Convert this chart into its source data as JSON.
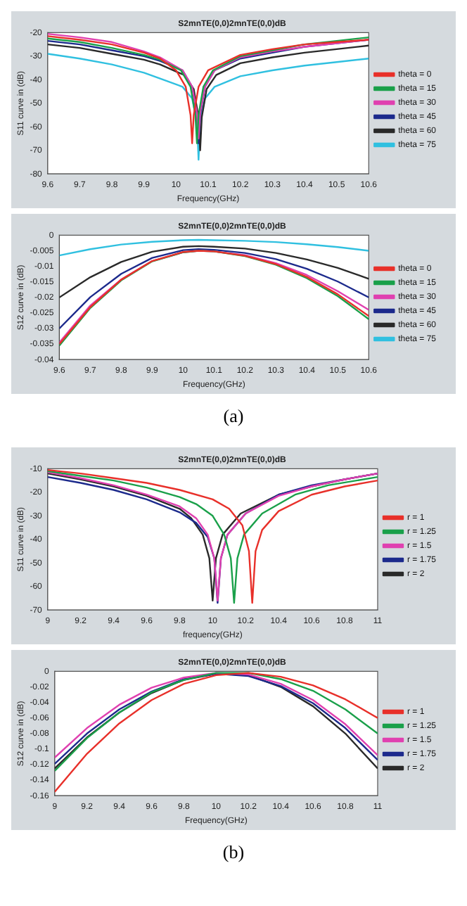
{
  "chart_data": [
    {
      "type": "line",
      "title": "S2mnTE(0,0)2mnTE(0,0)dB",
      "xlabel": "Frequency(GHz)",
      "ylabel": "S11 curve in (dB)",
      "xlim": [
        9.6,
        10.6
      ],
      "xticks": [
        9.6,
        9.7,
        9.8,
        9.9,
        10,
        10.1,
        10.2,
        10.3,
        10.4,
        10.5,
        10.6
      ],
      "ylim": [
        -80,
        -20
      ],
      "yticks": [
        -80,
        -70,
        -60,
        -50,
        -40,
        -30,
        -20
      ],
      "legend": "right",
      "series": [
        {
          "name": "theta = 0",
          "color": "#e8302a",
          "x": [
            9.6,
            9.7,
            9.8,
            9.9,
            9.95,
            10,
            10.03,
            10.045,
            10.05,
            10.055,
            10.07,
            10.1,
            10.2,
            10.3,
            10.4,
            10.5,
            10.6
          ],
          "values": [
            -21.5,
            -23,
            -25,
            -28.5,
            -31,
            -36,
            -43,
            -55,
            -67,
            -55,
            -43,
            -36,
            -29.5,
            -27,
            -25,
            -24,
            -23
          ]
        },
        {
          "name": "theta = 15",
          "color": "#1aa04a",
          "x": [
            9.6,
            9.7,
            9.8,
            9.9,
            9.95,
            10.015,
            10.045,
            10.06,
            10.065,
            10.07,
            10.085,
            10.115,
            10.2,
            10.3,
            10.4,
            10.5,
            10.6
          ],
          "values": [
            -22.5,
            -24,
            -26.5,
            -29.5,
            -31.5,
            -36,
            -43,
            -55,
            -67,
            -55,
            -43,
            -36,
            -30,
            -27.5,
            -25,
            -23.5,
            -22
          ]
        },
        {
          "name": "theta = 30",
          "color": "#e040b0",
          "x": [
            9.6,
            9.7,
            9.8,
            9.9,
            9.95,
            10.02,
            10.05,
            10.065,
            10.07,
            10.075,
            10.09,
            10.12,
            10.2,
            10.3,
            10.4,
            10.5,
            10.6
          ],
          "values": [
            -20.5,
            -22,
            -24,
            -28,
            -30.5,
            -36,
            -43,
            -54,
            -65,
            -54,
            -43,
            -36,
            -30.5,
            -28,
            -26,
            -24.5,
            -23
          ]
        },
        {
          "name": "theta = 45",
          "color": "#1c2a8c",
          "x": [
            9.6,
            9.7,
            9.8,
            9.9,
            9.95,
            10.02,
            10.05,
            10.065,
            10.07,
            10.075,
            10.09,
            10.12,
            10.2,
            10.3,
            10.4,
            10.5,
            10.6
          ],
          "values": [
            -23.5,
            -25,
            -27.5,
            -30,
            -32,
            -36,
            -43,
            -55,
            -67,
            -55,
            -43,
            -36,
            -31,
            -28.5,
            -26,
            -24.5,
            -23
          ]
        },
        {
          "name": "theta = 60",
          "color": "#2a2a2a",
          "x": [
            9.6,
            9.7,
            9.8,
            9.9,
            9.95,
            10.025,
            10.055,
            10.07,
            10.075,
            10.08,
            10.095,
            10.125,
            10.2,
            10.3,
            10.4,
            10.5,
            10.6
          ],
          "values": [
            -25,
            -26.5,
            -29,
            -31.5,
            -33.5,
            -38,
            -44,
            -56,
            -70,
            -56,
            -44,
            -38,
            -33,
            -30.5,
            -28.5,
            -27,
            -25.5
          ]
        },
        {
          "name": "theta = 75",
          "color": "#30c0e0",
          "x": [
            9.6,
            9.7,
            9.8,
            9.9,
            9.95,
            10.02,
            10.05,
            10.065,
            10.07,
            10.075,
            10.09,
            10.12,
            10.2,
            10.3,
            10.4,
            10.5,
            10.6
          ],
          "values": [
            -29,
            -31,
            -33.5,
            -37,
            -39.5,
            -43,
            -48,
            -58,
            -74,
            -58,
            -48,
            -43,
            -38.5,
            -36,
            -34,
            -32.5,
            -31
          ]
        }
      ]
    },
    {
      "type": "line",
      "title": "S2mnTE(0,0)2mnTE(0,0)dB",
      "xlabel": "Frequency(GHz)",
      "ylabel": "S12 curve in (dB)",
      "xlim": [
        9.6,
        10.6
      ],
      "xticks": [
        9.6,
        9.7,
        9.8,
        9.9,
        10,
        10.1,
        10.2,
        10.3,
        10.4,
        10.5,
        10.6
      ],
      "ylim": [
        -0.04,
        0
      ],
      "yticks": [
        -0.04,
        -0.035,
        -0.03,
        -0.025,
        -0.02,
        -0.015,
        -0.01,
        -0.005,
        0
      ],
      "legend": "right",
      "annotations": [
        "(a)"
      ],
      "x": [
        9.6,
        9.7,
        9.8,
        9.9,
        10,
        10.05,
        10.1,
        10.2,
        10.3,
        10.4,
        10.5,
        10.6
      ],
      "series": [
        {
          "name": "theta = 0",
          "color": "#e8302a",
          "values": [
            -0.035,
            -0.0231,
            -0.0143,
            -0.0083,
            -0.0054,
            -0.005,
            -0.0052,
            -0.0066,
            -0.0093,
            -0.0134,
            -0.019,
            -0.026
          ]
        },
        {
          "name": "theta = 15",
          "color": "#1aa04a",
          "values": [
            -0.0355,
            -0.0234,
            -0.0145,
            -0.0084,
            -0.0055,
            -0.005,
            -0.0052,
            -0.0067,
            -0.0095,
            -0.0138,
            -0.0196,
            -0.027
          ]
        },
        {
          "name": "theta = 30",
          "color": "#e040b0",
          "values": [
            -0.0345,
            -0.0226,
            -0.0142,
            -0.0083,
            -0.0055,
            -0.005,
            -0.0052,
            -0.0064,
            -0.009,
            -0.0128,
            -0.018,
            -0.024
          ]
        },
        {
          "name": "theta = 45",
          "color": "#1c2a8c",
          "values": [
            -0.03,
            -0.0199,
            -0.0124,
            -0.0073,
            -0.0048,
            -0.0045,
            -0.0047,
            -0.0057,
            -0.0077,
            -0.0108,
            -0.0149,
            -0.02
          ]
        },
        {
          "name": "theta = 60",
          "color": "#2a2a2a",
          "values": [
            -0.02,
            -0.0135,
            -0.0086,
            -0.0053,
            -0.0037,
            -0.0035,
            -0.0037,
            -0.0043,
            -0.0057,
            -0.0078,
            -0.0105,
            -0.014
          ]
        },
        {
          "name": "theta = 75",
          "color": "#30c0e0",
          "values": [
            -0.0065,
            -0.0045,
            -0.003,
            -0.0021,
            -0.0016,
            -0.0015,
            -0.0016,
            -0.0018,
            -0.0022,
            -0.0029,
            -0.0038,
            -0.005
          ]
        }
      ]
    },
    {
      "type": "line",
      "title": "S2mnTE(0,0)2mnTE(0,0)dB",
      "xlabel": "frequency(GHz)",
      "ylabel": "S11 curve in (dB)",
      "xlim": [
        9,
        11
      ],
      "xticks": [
        9,
        9.2,
        9.4,
        9.6,
        9.8,
        10,
        10.2,
        10.4,
        10.6,
        10.8,
        11
      ],
      "ylim": [
        -70,
        -10
      ],
      "yticks": [
        -70,
        -60,
        -50,
        -40,
        -30,
        -20,
        -10
      ],
      "legend": "right",
      "series": [
        {
          "name": "r = 1",
          "color": "#e8302a",
          "x": [
            9,
            9.2,
            9.4,
            9.6,
            9.8,
            10,
            10.1,
            10.18,
            10.22,
            10.24,
            10.26,
            10.3,
            10.4,
            10.6,
            10.8,
            11
          ],
          "values": [
            -10.5,
            -12,
            -14,
            -16,
            -19,
            -23,
            -27,
            -34,
            -45,
            -67,
            -45,
            -36,
            -28,
            -21,
            -17.5,
            -15
          ]
        },
        {
          "name": "r = 1.25",
          "color": "#1aa04a",
          "x": [
            9,
            9.2,
            9.4,
            9.6,
            9.8,
            9.9,
            10,
            10.07,
            10.11,
            10.13,
            10.15,
            10.19,
            10.3,
            10.5,
            10.7,
            11
          ],
          "values": [
            -11,
            -13,
            -15,
            -18,
            -22,
            -25,
            -30,
            -38,
            -48,
            -67,
            -48,
            -38,
            -29,
            -21,
            -17,
            -13.5
          ]
        },
        {
          "name": "r = 1.5",
          "color": "#e040b0",
          "x": [
            9,
            9.2,
            9.4,
            9.6,
            9.8,
            9.9,
            9.97,
            10.01,
            10.03,
            10.05,
            10.09,
            10.2,
            10.4,
            10.6,
            10.8,
            11
          ],
          "values": [
            -11.5,
            -14,
            -17,
            -21,
            -26,
            -31,
            -38,
            -48,
            -66,
            -48,
            -38,
            -29,
            -21.5,
            -17.5,
            -14.5,
            -12
          ]
        },
        {
          "name": "r = 1.75",
          "color": "#1c2a8c",
          "x": [
            9,
            9.2,
            9.4,
            9.6,
            9.8,
            9.9,
            9.97,
            10.01,
            10.03,
            10.05,
            10.09,
            10.2,
            10.4,
            10.6,
            10.8,
            11
          ],
          "values": [
            -13.5,
            -16,
            -19,
            -23,
            -28.5,
            -33,
            -39,
            -48,
            -67,
            -48,
            -38,
            -29,
            -21,
            -17,
            -14.5,
            -12
          ]
        },
        {
          "name": "r = 2",
          "color": "#2a2a2a",
          "x": [
            9,
            9.2,
            9.4,
            9.6,
            9.8,
            9.87,
            9.94,
            9.98,
            10,
            10.02,
            10.06,
            10.17,
            10.4,
            10.6,
            10.8,
            11
          ],
          "values": [
            -12,
            -14.5,
            -17.5,
            -21.5,
            -27,
            -31,
            -38,
            -48,
            -66,
            -48,
            -38,
            -29,
            -21,
            -17.5,
            -14.5,
            -12
          ]
        }
      ]
    },
    {
      "type": "line",
      "title": "S2mnTE(0,0)2mnTE(0,0)dB",
      "xlabel": "Frequency(GHz)",
      "ylabel": "S12 curve in (dB)",
      "xlim": [
        9,
        11
      ],
      "xticks": [
        9,
        9.2,
        9.4,
        9.6,
        9.8,
        10,
        10.2,
        10.4,
        10.6,
        10.8,
        11
      ],
      "ylim": [
        -0.16,
        0
      ],
      "yticks": [
        -0.16,
        -0.14,
        -0.12,
        -0.1,
        -0.08,
        -0.06,
        -0.04,
        -0.02,
        0
      ],
      "legend": "right",
      "annotations": [
        "(b)"
      ],
      "x": [
        9,
        9.2,
        9.4,
        9.6,
        9.8,
        10,
        10.2,
        10.4,
        10.6,
        10.8,
        11
      ],
      "series": [
        {
          "name": "r = 1",
          "color": "#e8302a",
          "values": [
            -0.155,
            -0.106,
            -0.067,
            -0.037,
            -0.016,
            -0.005,
            -0.002,
            -0.007,
            -0.018,
            -0.036,
            -0.06
          ]
        },
        {
          "name": "r = 1.25",
          "color": "#1aa04a",
          "values": [
            -0.128,
            -0.086,
            -0.053,
            -0.027,
            -0.011,
            -0.002,
            -0.002,
            -0.01,
            -0.025,
            -0.049,
            -0.08
          ]
        },
        {
          "name": "r = 1.5",
          "color": "#e040b0",
          "values": [
            -0.111,
            -0.073,
            -0.043,
            -0.021,
            -0.008,
            -0.002,
            -0.004,
            -0.016,
            -0.037,
            -0.068,
            -0.108
          ]
        },
        {
          "name": "r = 1.75",
          "color": "#1c2a8c",
          "values": [
            -0.119,
            -0.08,
            -0.049,
            -0.026,
            -0.01,
            -0.003,
            -0.006,
            -0.019,
            -0.041,
            -0.073,
            -0.114
          ]
        },
        {
          "name": "r = 2",
          "color": "#2a2a2a",
          "values": [
            -0.125,
            -0.085,
            -0.053,
            -0.028,
            -0.011,
            -0.003,
            -0.005,
            -0.02,
            -0.045,
            -0.08,
            -0.125
          ]
        }
      ]
    }
  ]
}
